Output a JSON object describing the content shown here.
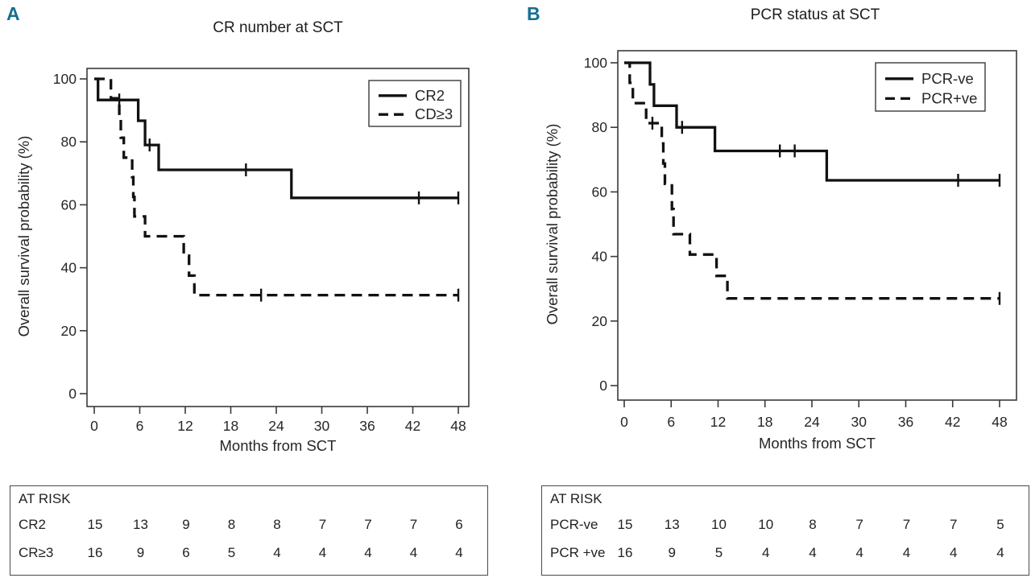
{
  "colors": {
    "accent": "#166e93",
    "curve": "#111111",
    "axis": "#3a3a3a",
    "text": "#262626",
    "background": "#ffffff"
  },
  "chart_data": [
    {
      "panel_label": "A",
      "title": "CR number at SCT",
      "type": "line",
      "subtype": "kaplan-meier-step",
      "xlabel": "Months from SCT",
      "ylabel": "Overall survival probability (%)",
      "xlim": [
        0,
        48
      ],
      "ylim": [
        0,
        100
      ],
      "x_ticks": [
        0,
        6,
        12,
        18,
        24,
        30,
        36,
        42,
        48
      ],
      "y_ticks": [
        0,
        20,
        40,
        60,
        80,
        100
      ],
      "grid": false,
      "legend_position": "top-right-inside",
      "legend": [
        {
          "label": "CR2",
          "style": "solid"
        },
        {
          "label": "CD≥3",
          "style": "dashed"
        }
      ],
      "series": [
        {
          "name": "CR2",
          "style": "solid",
          "start_pct": 100,
          "steps": [
            [
              0.5,
              93.3
            ],
            [
              5.8,
              86.7
            ],
            [
              6.7,
              79.0
            ],
            [
              8.5,
              71.1
            ],
            [
              26.0,
              62.2
            ]
          ],
          "censors": [
            [
              3.3,
              93.3
            ],
            [
              7.3,
              79.0
            ],
            [
              20.0,
              71.1
            ],
            [
              42.8,
              62.2
            ],
            [
              48,
              62.2
            ]
          ],
          "end_time": 48,
          "end_pct": 62.2
        },
        {
          "name": "CD≥3",
          "style": "dashed",
          "start_pct": 100,
          "steps": [
            [
              2.2,
              93.8
            ],
            [
              3.3,
              87.5
            ],
            [
              3.5,
              81.3
            ],
            [
              3.9,
              75.0
            ],
            [
              5.0,
              68.8
            ],
            [
              5.15,
              62.5
            ],
            [
              5.3,
              56.3
            ],
            [
              6.7,
              50.0
            ],
            [
              11.8,
              43.8
            ],
            [
              12.5,
              37.5
            ],
            [
              13.2,
              31.3
            ]
          ],
          "censors": [
            [
              22.0,
              31.3
            ],
            [
              48,
              31.3
            ]
          ],
          "end_time": 48,
          "end_pct": 31.3
        }
      ],
      "at_risk": {
        "header": "AT RISK",
        "times": [
          0,
          6,
          12,
          18,
          24,
          30,
          36,
          42,
          48
        ],
        "rows": [
          {
            "label": "CR2",
            "values": [
              15,
              13,
              9,
              8,
              8,
              7,
              7,
              7,
              6
            ]
          },
          {
            "label": "CR≥3",
            "values": [
              16,
              9,
              6,
              5,
              4,
              4,
              4,
              4,
              4
            ]
          }
        ]
      }
    },
    {
      "panel_label": "B",
      "title": "PCR status at SCT",
      "type": "line",
      "subtype": "kaplan-meier-step",
      "xlabel": "Months from SCT",
      "ylabel": "Overall survival probability (%)",
      "xlim": [
        0,
        48
      ],
      "ylim": [
        0,
        100
      ],
      "x_ticks": [
        0,
        6,
        12,
        18,
        24,
        30,
        36,
        42,
        48
      ],
      "y_ticks": [
        0,
        20,
        40,
        60,
        80,
        100
      ],
      "grid": false,
      "legend_position": "top-right-inside",
      "legend": [
        {
          "label": "PCR-ve",
          "style": "solid"
        },
        {
          "label": "PCR+ve",
          "style": "dashed"
        }
      ],
      "series": [
        {
          "name": "PCR-ve",
          "style": "solid",
          "start_pct": 100,
          "steps": [
            [
              3.3,
              93.3
            ],
            [
              3.8,
              86.7
            ],
            [
              6.7,
              80.0
            ],
            [
              11.6,
              72.7
            ],
            [
              25.9,
              63.6
            ]
          ],
          "censors": [
            [
              7.4,
              80.0
            ],
            [
              19.9,
              72.7
            ],
            [
              21.8,
              72.7
            ],
            [
              42.7,
              63.6
            ],
            [
              48,
              63.6
            ]
          ],
          "end_time": 48,
          "end_pct": 63.6
        },
        {
          "name": "PCR+ve",
          "style": "dashed",
          "start_pct": 100,
          "steps": [
            [
              0.7,
              93.8
            ],
            [
              1.1,
              87.5
            ],
            [
              2.8,
              81.3
            ],
            [
              4.8,
              75.0
            ],
            [
              5.0,
              68.8
            ],
            [
              5.2,
              62.5
            ],
            [
              6.1,
              54.7
            ],
            [
              6.3,
              46.9
            ],
            [
              8.4,
              40.6
            ],
            [
              11.8,
              34.0
            ],
            [
              13.2,
              27.0
            ]
          ],
          "censors": [
            [
              3.6,
              81.3
            ],
            [
              48,
              27.0
            ]
          ],
          "end_time": 48,
          "end_pct": 27.0
        }
      ],
      "at_risk": {
        "header": "AT RISK",
        "times": [
          0,
          6,
          12,
          18,
          24,
          30,
          36,
          42,
          48
        ],
        "rows": [
          {
            "label": "PCR-ve",
            "values": [
              15,
              13,
              10,
              10,
              8,
              7,
              7,
              7,
              5
            ]
          },
          {
            "label": "PCR +ve",
            "values": [
              16,
              9,
              5,
              4,
              4,
              4,
              4,
              4,
              4
            ]
          }
        ]
      }
    }
  ]
}
